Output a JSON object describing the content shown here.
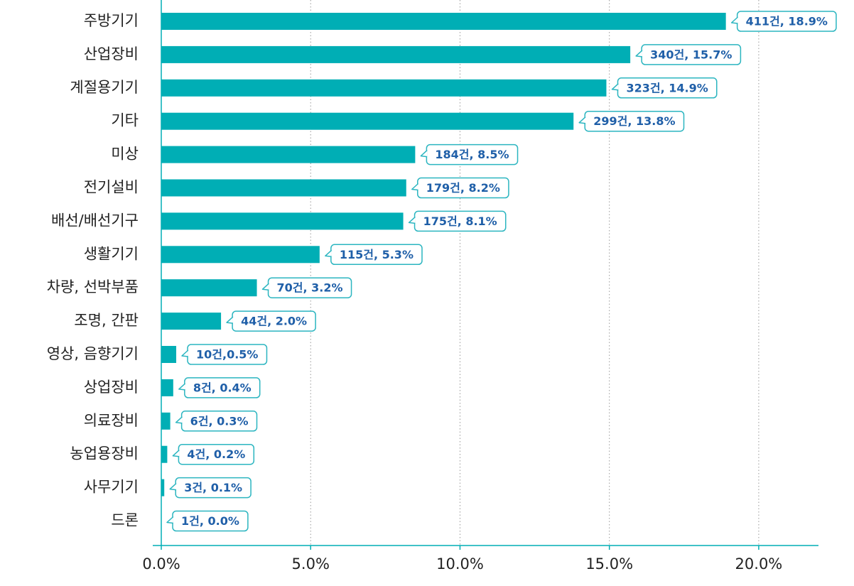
{
  "chart_data": {
    "type": "bar",
    "orientation": "horizontal",
    "categories": [
      "주방기기",
      "산업장비",
      "계절용기기",
      "기타",
      "미상",
      "전기설비",
      "배선/배선기구",
      "생활기기",
      "차량, 선박부품",
      "조명, 간판",
      "영상, 음향기기",
      "상업장비",
      "의료장비",
      "농업용장비",
      "사무기기",
      "드론"
    ],
    "values": [
      18.9,
      15.7,
      14.9,
      13.8,
      8.5,
      8.2,
      8.1,
      5.3,
      3.2,
      2.0,
      0.5,
      0.4,
      0.3,
      0.2,
      0.1,
      0.0
    ],
    "value_labels": [
      "411건, 18.9%",
      "340건, 15.7%",
      "323건, 14.9%",
      "299건, 13.8%",
      "184건, 8.5%",
      "179건, 8.2%",
      "175건, 8.1%",
      "115건, 5.3%",
      "70건, 3.2%",
      "44건, 2.0%",
      "10건,0.5%",
      "8건, 0.4%",
      "6건, 0.3%",
      "4건, 0.2%",
      "3건, 0.1%",
      "1건, 0.0%"
    ],
    "color": "#00aeb5",
    "xlim": [
      0,
      22
    ],
    "xticks": [
      {
        "value": 0,
        "label": "0.0%"
      },
      {
        "value": 5,
        "label": "5.0%"
      },
      {
        "value": 10,
        "label": "10.0%"
      },
      {
        "value": 15,
        "label": "15.0%"
      },
      {
        "value": 20,
        "label": "20.0%"
      }
    ],
    "grid": true
  }
}
